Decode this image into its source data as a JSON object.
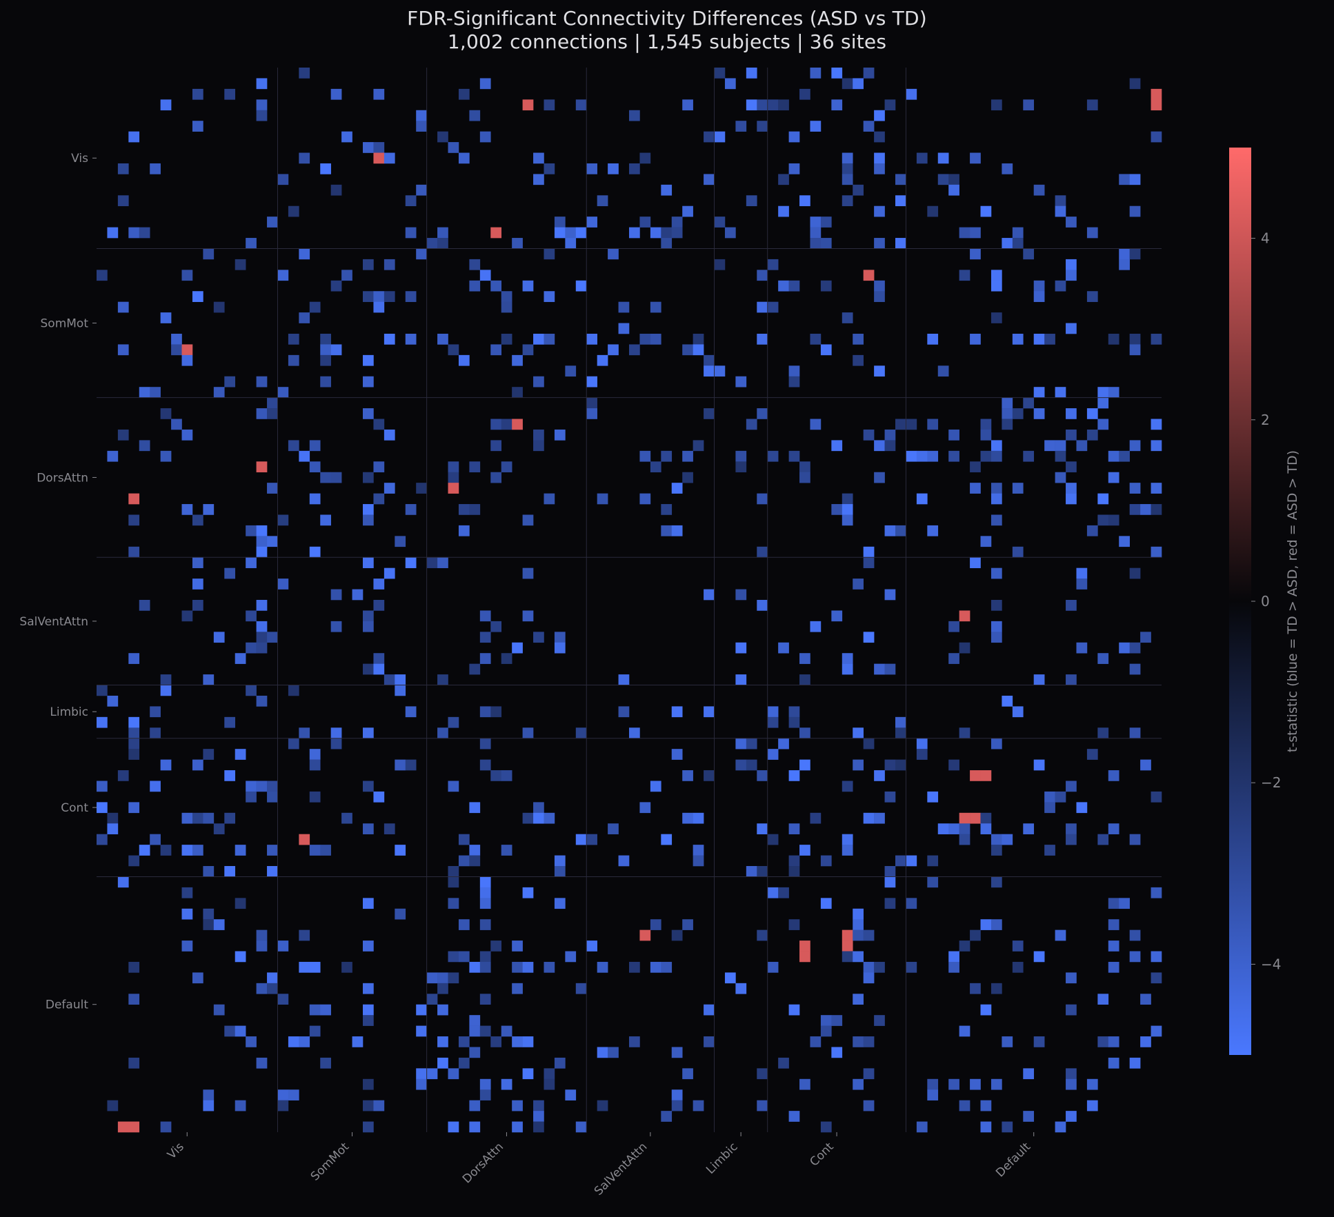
{
  "chart_data": {
    "type": "heatmap",
    "title": "FDR-Significant Connectivity Differences (ASD vs TD)",
    "subtitle": "1,002 connections | 1,545 subjects | 36 sites",
    "n_rois": 100,
    "networks": [
      {
        "name": "Vis",
        "start": 0,
        "end": 17
      },
      {
        "name": "SomMot",
        "start": 17,
        "end": 31
      },
      {
        "name": "DorsAttn",
        "start": 31,
        "end": 46
      },
      {
        "name": "SalVentAttn",
        "start": 46,
        "end": 58
      },
      {
        "name": "Limbic",
        "start": 58,
        "end": 63
      },
      {
        "name": "Cont",
        "start": 63,
        "end": 76
      },
      {
        "name": "Default",
        "start": 76,
        "end": 100
      }
    ],
    "n_significant_connections": 1002,
    "positive_cells": [
      [
        3,
        40
      ],
      [
        37,
        15
      ],
      [
        51,
        81
      ],
      [
        72,
        19
      ],
      [
        8,
        26
      ],
      [
        39,
        33
      ],
      [
        82,
        66
      ],
      [
        83,
        66
      ],
      [
        99,
        3
      ],
      [
        70,
        81
      ],
      [
        70,
        82
      ],
      [
        2,
        99
      ]
    ],
    "colorbar": {
      "label": "t-statistic (blue = TD > ASD, red = ASD > TD)",
      "vmin": -5,
      "vmax": 5,
      "ticks": [
        -4,
        -2,
        0,
        2,
        4
      ],
      "tick_labels": [
        "−4",
        "−2",
        "0",
        "2",
        "4"
      ],
      "colors": {
        "min": "#4a78ff",
        "mid": "#07070a",
        "max": "#ff6a6a"
      }
    },
    "grid": false,
    "legend": "colorbar-right"
  }
}
